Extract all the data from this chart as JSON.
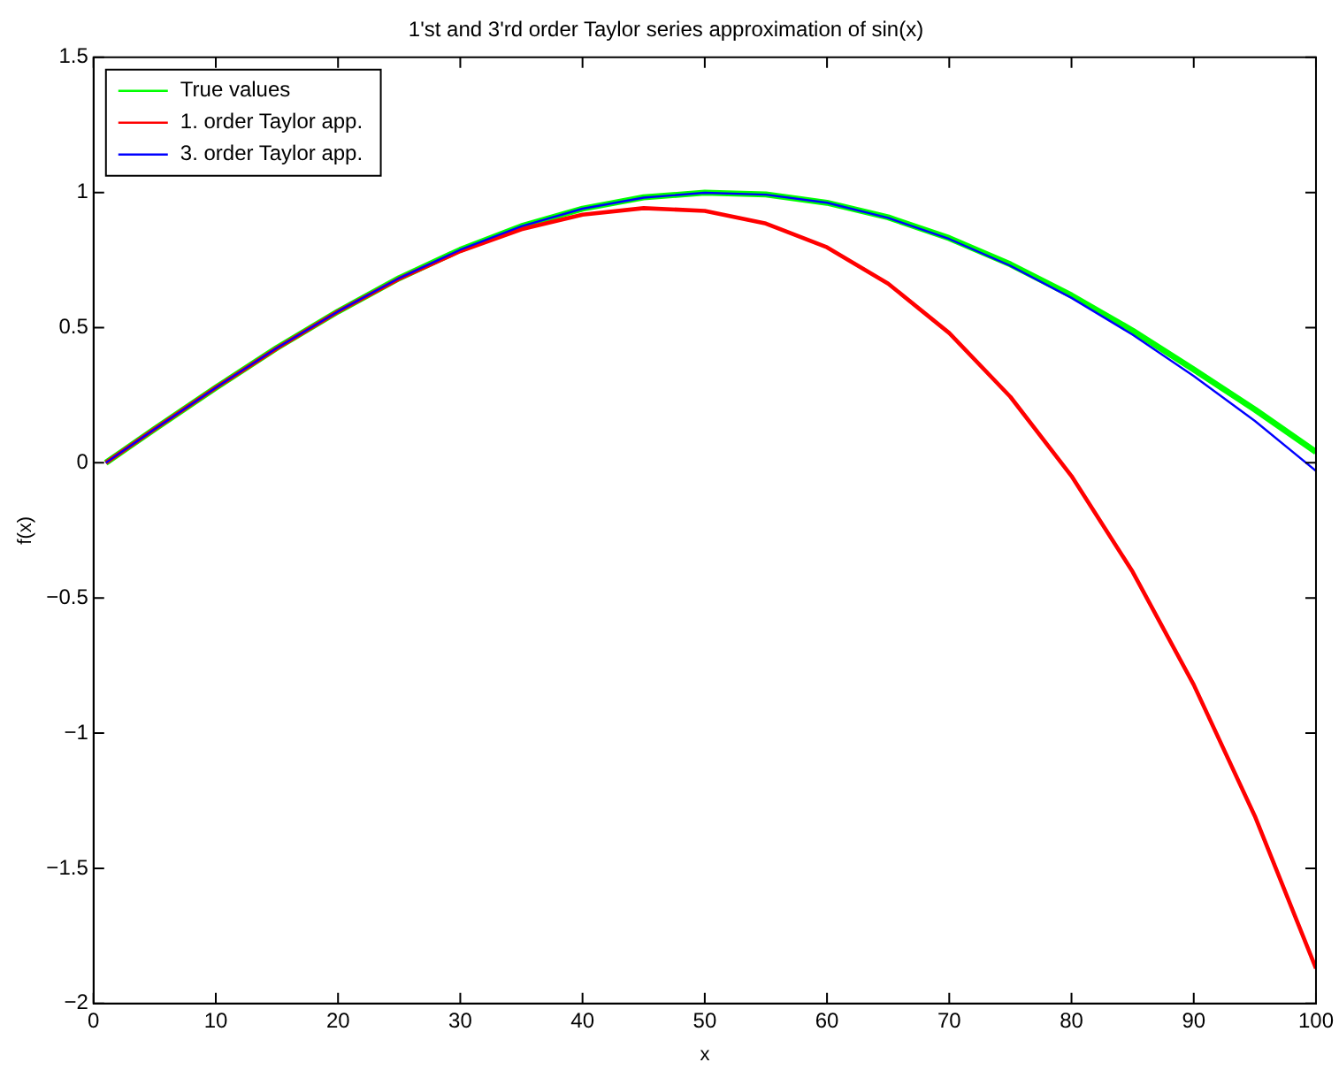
{
  "chart_data": {
    "type": "line",
    "title": "1'st and 3'rd order Taylor series approximation of sin(x)",
    "xlabel": "x",
    "ylabel": "f(x)",
    "x": [
      1,
      5,
      10,
      15,
      20,
      25,
      30,
      35,
      40,
      45,
      50,
      55,
      60,
      65,
      70,
      75,
      80,
      85,
      90,
      95,
      100
    ],
    "series": [
      {
        "name": "True values",
        "color": "#00ff00",
        "values": [
          0,
          0.125,
          0.278,
          0.425,
          0.56,
          0.683,
          0.788,
          0.875,
          0.94,
          0.982,
          0.999,
          0.993,
          0.962,
          0.908,
          0.831,
          0.734,
          0.619,
          0.489,
          0.345,
          0.197,
          0.04
        ]
      },
      {
        "name": "1. order Taylor app.",
        "color": "#ff0000",
        "values": [
          0,
          0.125,
          0.278,
          0.424,
          0.56,
          0.681,
          0.783,
          0.864,
          0.918,
          0.942,
          0.932,
          0.885,
          0.797,
          0.663,
          0.48,
          0.244,
          -0.049,
          -0.403,
          -0.821,
          -1.307,
          -1.87
        ]
      },
      {
        "name": "3. order Taylor app.",
        "color": "#0000ff",
        "values": [
          0,
          0.125,
          0.278,
          0.425,
          0.56,
          0.683,
          0.788,
          0.875,
          0.94,
          0.981,
          0.999,
          0.992,
          0.962,
          0.906,
          0.828,
          0.729,
          0.61,
          0.474,
          0.321,
          0.155,
          -0.03
        ]
      }
    ],
    "xlim": [
      0,
      100
    ],
    "xticks": [
      0,
      10,
      20,
      30,
      40,
      50,
      60,
      70,
      80,
      90,
      100
    ],
    "ylim": [
      -2,
      1.5
    ],
    "yticks": [
      -2,
      -1.5,
      -1,
      -0.5,
      0,
      0.5,
      1,
      1.5
    ],
    "legend": "top left",
    "grid": false,
    "marker": "none",
    "line_style": "solid"
  }
}
